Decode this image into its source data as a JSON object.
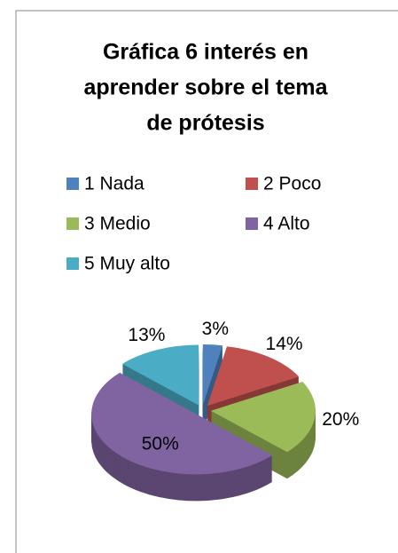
{
  "chart_data": {
    "type": "pie",
    "title": [
      "Gráfica 6 interés en",
      "aprender sobre el tema",
      "de prótesis"
    ],
    "categories": [
      "1 Nada",
      "2 Poco",
      "3 Medio",
      "4 Alto",
      "5 Muy alto"
    ],
    "values": [
      3,
      14,
      20,
      50,
      13
    ],
    "value_labels": [
      "3%",
      "14%",
      "20%",
      "50%",
      "13%"
    ],
    "colors": [
      "#4f81bd",
      "#c0504d",
      "#9bbb59",
      "#8064a2",
      "#4bacc6"
    ],
    "legend": "top"
  }
}
